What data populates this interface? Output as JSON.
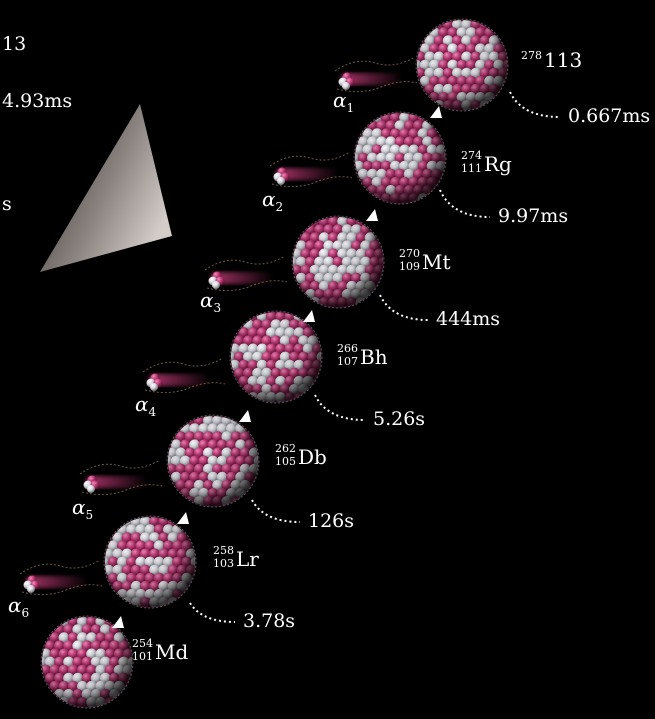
{
  "edge_text": [
    "13",
    "4.93ms",
    "s"
  ],
  "chain": [
    {
      "mass": "278",
      "z": "",
      "symbol": "113",
      "half_life": "0.667ms"
    },
    {
      "mass": "274",
      "z": "111",
      "symbol": "Rg",
      "half_life": "9.97ms"
    },
    {
      "mass": "270",
      "z": "109",
      "symbol": "Mt",
      "half_life": "444ms"
    },
    {
      "mass": "266",
      "z": "107",
      "symbol": "Bh",
      "half_life": "5.26s"
    },
    {
      "mass": "262",
      "z": "105",
      "symbol": "Db",
      "half_life": "126s"
    },
    {
      "mass": "258",
      "z": "103",
      "symbol": "Lr",
      "half_life": "3.78s"
    },
    {
      "mass": "254",
      "z": "101",
      "symbol": "Md",
      "half_life": ""
    }
  ],
  "alphas": [
    {
      "symbol": "α",
      "index": "1"
    },
    {
      "symbol": "α",
      "index": "2"
    },
    {
      "symbol": "α",
      "index": "3"
    },
    {
      "symbol": "α",
      "index": "4"
    },
    {
      "symbol": "α",
      "index": "5"
    },
    {
      "symbol": "α",
      "index": "6"
    }
  ],
  "colors": {
    "background": "#000000",
    "proton": "#b8336f",
    "neutron": "#e8e8ec",
    "text": "#ffffff"
  }
}
